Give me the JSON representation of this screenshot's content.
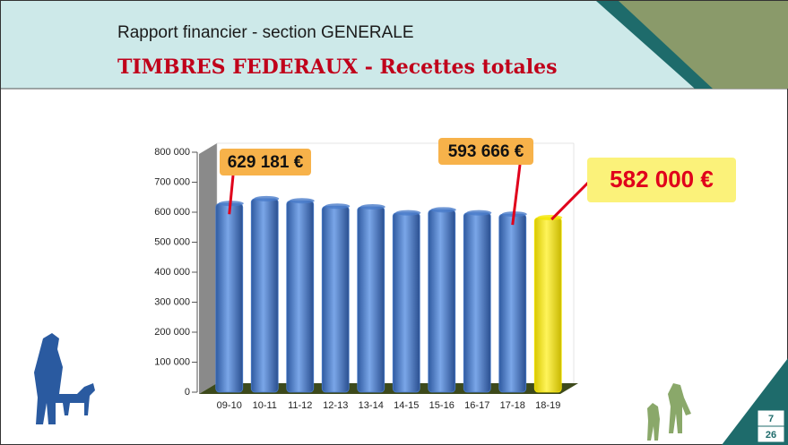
{
  "header": {
    "subtitle": "Rapport financier - section GENERALE",
    "title": "TIMBRES FEDERAUX - Recettes totales"
  },
  "page": {
    "current": "7",
    "total": "26"
  },
  "chart_data": {
    "type": "bar",
    "categories": [
      "09-10",
      "10-11",
      "11-12",
      "12-13",
      "13-14",
      "14-15",
      "15-16",
      "16-17",
      "17-18",
      "18-19"
    ],
    "values": [
      629181,
      645000,
      638000,
      620000,
      618000,
      598000,
      608000,
      598000,
      593666,
      582000
    ],
    "value_labels": [
      "629 181 €",
      null,
      null,
      null,
      null,
      null,
      null,
      null,
      "593 666 €",
      "582 000 €"
    ],
    "colors": [
      "#4a7cc9",
      "#4a7cc9",
      "#4a7cc9",
      "#4a7cc9",
      "#4a7cc9",
      "#4a7cc9",
      "#4a7cc9",
      "#4a7cc9",
      "#4a7cc9",
      "#f4e600"
    ],
    "ylim": [
      0,
      800000
    ],
    "yticks": [
      0,
      {
        "value": 100000,
        "label": "100 000"
      },
      {
        "value": 200000,
        "label": "200 000"
      },
      {
        "value": 300000,
        "label": "300 000"
      },
      {
        "value": 400000,
        "label": "400 000"
      },
      {
        "value": 500000,
        "label": "500 000"
      },
      {
        "value": 600000,
        "label": "600 000"
      },
      {
        "value": 700000,
        "label": "700 000"
      },
      {
        "value": 800000,
        "label": "800 000"
      }
    ]
  }
}
